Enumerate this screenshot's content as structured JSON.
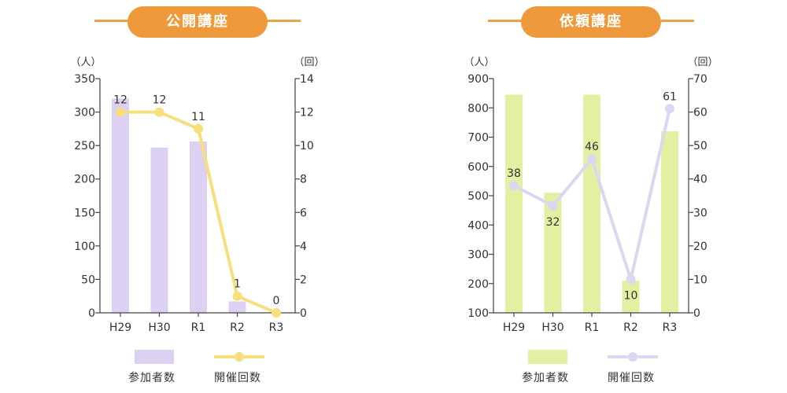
{
  "colors": {
    "header_orange": "#ee9a3c",
    "header_line": "#f0a045",
    "axis": "#444444",
    "left_bars": "#ddd1f3",
    "left_line": "#f6df7c",
    "right_bars": "#e3f0a2",
    "right_line": "#ddd6f2"
  },
  "chart_data": [
    {
      "type": "bar",
      "title": "公開講座",
      "categories": [
        "H29",
        "H30",
        "R1",
        "R2",
        "R3"
      ],
      "y_left": {
        "unit": "（人）",
        "ylim": [
          0,
          350
        ],
        "ticks": [
          "0",
          "50",
          "100",
          "150",
          "200",
          "250",
          "300",
          "350"
        ]
      },
      "y_right": {
        "unit": "（回）",
        "ylim": [
          0,
          14
        ],
        "ticks": [
          "0",
          "2",
          "4",
          "6",
          "8",
          "10",
          "12",
          "14"
        ]
      },
      "series": [
        {
          "name": "参加者数",
          "kind": "bar",
          "axis": "left",
          "values": [
            320,
            247,
            256,
            17,
            0
          ]
        },
        {
          "name": "開催回数",
          "kind": "line",
          "axis": "right",
          "values": [
            12,
            12,
            11,
            1,
            0
          ],
          "labels": [
            "12",
            "12",
            "11",
            "1",
            "0"
          ]
        }
      ],
      "legend": {
        "placement": "bottom",
        "bar_label": "参加者数",
        "line_label": "開催回数"
      }
    },
    {
      "type": "bar",
      "title": "依頼講座",
      "categories": [
        "H29",
        "H30",
        "R1",
        "R2",
        "R3"
      ],
      "y_left": {
        "unit": "（人）",
        "ylim": [
          100,
          900
        ],
        "ticks": [
          "100",
          "200",
          "300",
          "400",
          "500",
          "600",
          "700",
          "800",
          "900"
        ]
      },
      "y_right": {
        "unit": "（回）",
        "ylim": [
          0,
          70
        ],
        "ticks": [
          "0",
          "10",
          "20",
          "30",
          "40",
          "50",
          "60",
          "70"
        ]
      },
      "series": [
        {
          "name": "参加者数",
          "kind": "bar",
          "axis": "left",
          "values": [
            845,
            510,
            845,
            210,
            720
          ]
        },
        {
          "name": "開催回数",
          "kind": "line",
          "axis": "right",
          "values": [
            38,
            32,
            46,
            10,
            61
          ],
          "labels": [
            "38",
            "32",
            "46",
            "10",
            "61"
          ]
        }
      ],
      "legend": {
        "placement": "bottom",
        "bar_label": "参加者数",
        "line_label": "開催回数"
      }
    }
  ]
}
